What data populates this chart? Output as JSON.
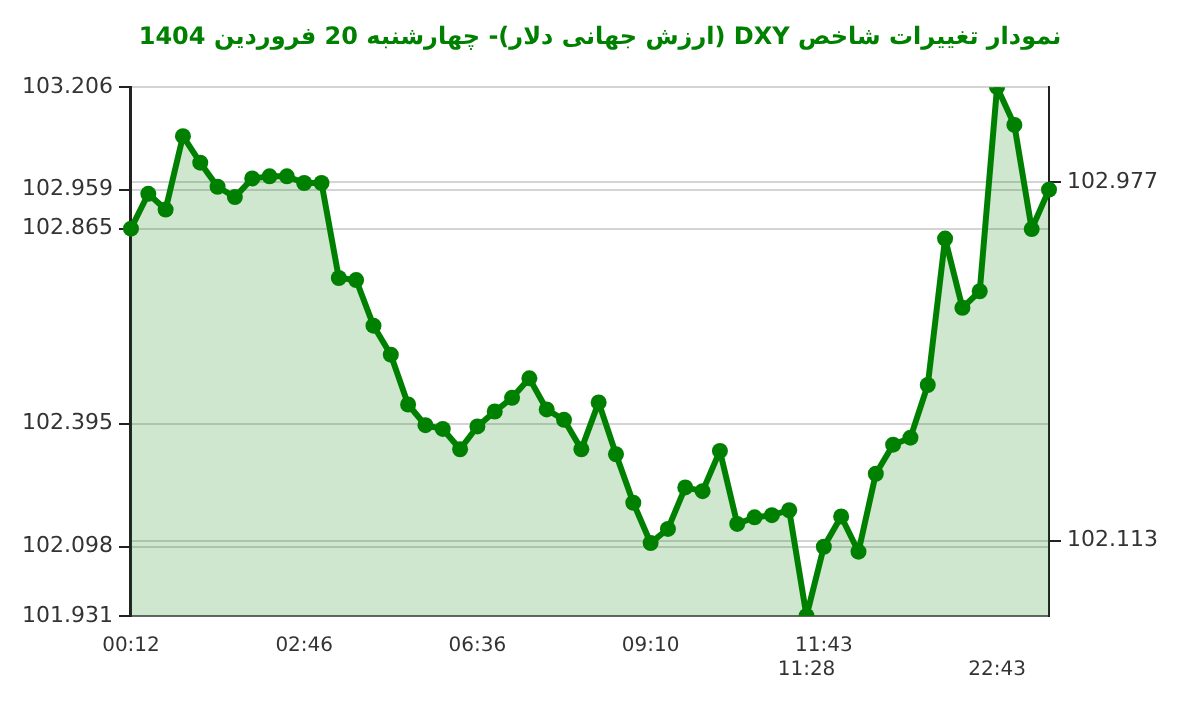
{
  "chart_data": {
    "type": "area",
    "title": "نمودار تغییرات شاخص DXY (ارزش جهانی دلار)- چهارشنبه 20 فروردین 1404",
    "categories": [
      "00:12",
      null,
      null,
      null,
      null,
      null,
      null,
      null,
      null,
      null,
      "02:46",
      null,
      null,
      null,
      null,
      null,
      null,
      null,
      null,
      null,
      "06:36",
      null,
      null,
      null,
      null,
      null,
      null,
      null,
      null,
      null,
      "09:10",
      null,
      null,
      null,
      null,
      null,
      null,
      null,
      null,
      "11:28",
      "11:43",
      null,
      null,
      null,
      null,
      null,
      null,
      null,
      null,
      null,
      "22:43",
      null,
      null,
      null
    ],
    "series": [
      {
        "color": "#008000",
        "values": [
          102.865,
          102.949,
          102.911,
          103.088,
          103.024,
          102.966,
          102.941,
          102.986,
          102.991,
          102.991,
          102.975,
          102.975,
          102.746,
          102.741,
          102.631,
          102.561,
          102.441,
          102.391,
          102.382,
          102.333,
          102.388,
          102.424,
          102.457,
          102.504,
          102.429,
          102.404,
          102.333,
          102.446,
          102.321,
          102.204,
          102.107,
          102.141,
          102.241,
          102.232,
          102.329,
          102.153,
          102.169,
          102.174,
          102.186,
          101.931,
          102.098,
          102.171,
          102.086,
          102.274,
          102.344,
          102.361,
          102.488,
          102.841,
          102.674,
          102.714,
          103.206,
          103.115,
          102.864,
          102.959
        ]
      }
    ],
    "ylim": [
      101.931,
      103.206
    ],
    "yticks": [
      101.931,
      102.098,
      102.395,
      102.865,
      102.959,
      103.206
    ],
    "y2lim": [
      101.931,
      103.206
    ],
    "y2ticks": [
      102.113,
      102.977
    ],
    "grid": "y",
    "marker": "circle",
    "line_style": "solid"
  }
}
